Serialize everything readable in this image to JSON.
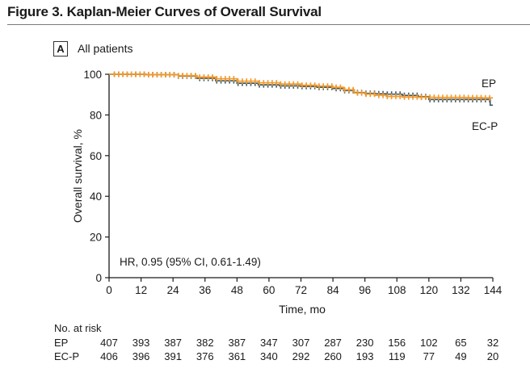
{
  "figure": {
    "title": "Figure 3. Kaplan-Meier Curves of Overall Survival",
    "panel_letter": "A",
    "panel_label": "All patients"
  },
  "colors": {
    "EP": "#f29a2e",
    "EC-P": "#3d5c68",
    "axis": "#1a1a1a"
  },
  "chart_data": {
    "type": "line",
    "title": "",
    "xlabel": "Time, mo",
    "ylabel": "Overall survival, %",
    "xlim": [
      0,
      144
    ],
    "ylim": [
      0,
      100
    ],
    "x_ticks": [
      0,
      12,
      24,
      36,
      48,
      60,
      72,
      84,
      96,
      108,
      120,
      132,
      144
    ],
    "y_ticks": [
      0,
      20,
      40,
      60,
      80,
      100
    ],
    "grid": false,
    "annotation": "HR, 0.95 (95% CI, 0.61-1.49)",
    "series": [
      {
        "name": "EP",
        "color": "#f29a2e",
        "x": [
          0,
          14,
          26,
          33,
          40,
          48,
          56,
          64,
          72,
          78,
          84,
          88,
          92,
          96,
          100,
          104,
          110,
          116,
          122,
          128,
          134,
          140,
          144
        ],
        "y": [
          100,
          99.8,
          99.3,
          98.6,
          97.8,
          96.6,
          95.8,
          95.2,
          94.6,
          94.2,
          93.6,
          92.4,
          90.8,
          90.2,
          89.6,
          89.1,
          88.8,
          88.7,
          88.6,
          88.6,
          88.5,
          88.4,
          88.4
        ]
      },
      {
        "name": "EC-P",
        "color": "#3d5c68",
        "x": [
          0,
          14,
          26,
          33,
          40,
          48,
          56,
          64,
          72,
          78,
          84,
          88,
          92,
          96,
          100,
          104,
          110,
          116,
          120,
          128,
          134,
          140,
          142,
          143,
          144
        ],
        "y": [
          100,
          99.8,
          99.1,
          98.0,
          96.8,
          95.6,
          94.8,
          94.3,
          94.0,
          93.6,
          93.0,
          92.0,
          91.0,
          90.6,
          90.4,
          90.2,
          89.6,
          89.0,
          87.6,
          87.6,
          87.6,
          87.6,
          87.6,
          84.8,
          84.8
        ]
      }
    ],
    "end_labels": [
      "EP",
      "EC-P"
    ]
  },
  "risk_table": {
    "header": "No. at risk",
    "rows": [
      {
        "label": "EP",
        "values": [
          "407",
          "393",
          "387",
          "382",
          "387",
          "347",
          "307",
          "287",
          "230",
          "156",
          "102",
          "65",
          "32"
        ]
      },
      {
        "label": "EC-P",
        "values": [
          "406",
          "396",
          "391",
          "376",
          "361",
          "340",
          "292",
          "260",
          "193",
          "119",
          "77",
          "49",
          "20"
        ]
      }
    ]
  }
}
